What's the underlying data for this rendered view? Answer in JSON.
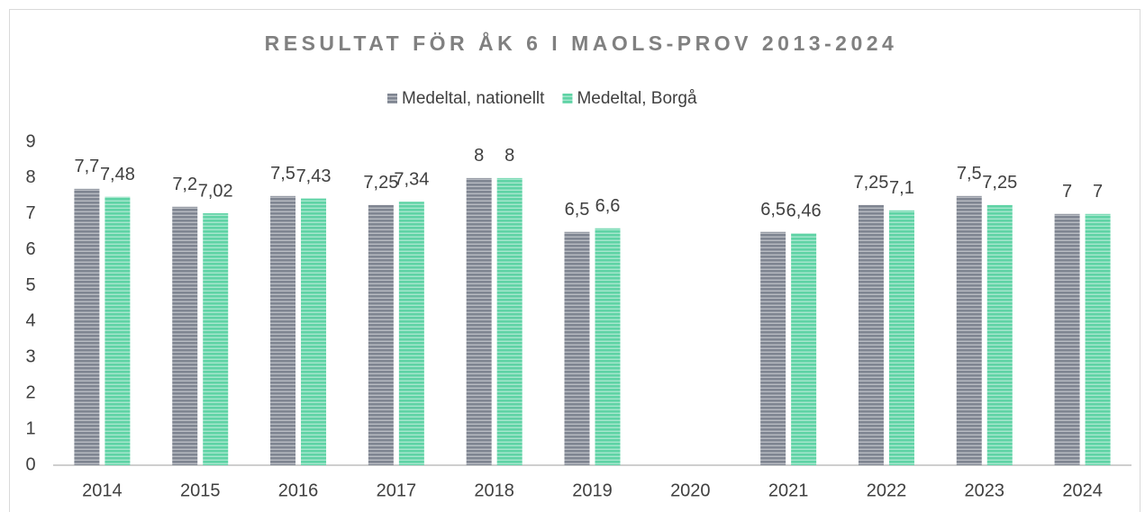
{
  "chart_data": {
    "type": "bar",
    "title": "RESULTAT FÖR ÅK 6 I MAOLS-PROV 2013-2024",
    "categories": [
      "2014",
      "2015",
      "2016",
      "2017",
      "2018",
      "2019",
      "2020",
      "2021",
      "2022",
      "2023",
      "2024"
    ],
    "series": [
      {
        "name": "Medeltal, nationellt",
        "color": "#7f8591",
        "values": [
          7.7,
          7.2,
          7.5,
          7.25,
          8,
          6.5,
          null,
          6.5,
          7.25,
          7.5,
          7
        ],
        "value_labels": [
          "7,7",
          "7,2",
          "7,5",
          "7,25",
          "8",
          "6,5",
          null,
          "6,5",
          "7,25",
          "7,5",
          "7"
        ]
      },
      {
        "name": "Medeltal, Borgå",
        "color": "#5fd3a5",
        "values": [
          7.48,
          7.02,
          7.43,
          7.34,
          8,
          6.6,
          null,
          6.46,
          7.1,
          7.25,
          7
        ],
        "value_labels": [
          "7,48",
          "7,02",
          "7,43",
          "7,34",
          "8",
          "6,6",
          null,
          "6,46",
          "7,1",
          "7,25",
          "7"
        ]
      }
    ],
    "ylim": [
      0,
      9
    ],
    "yticks": [
      0,
      1,
      2,
      3,
      4,
      5,
      6,
      7,
      8,
      9
    ],
    "legend": "top",
    "grid": false
  }
}
